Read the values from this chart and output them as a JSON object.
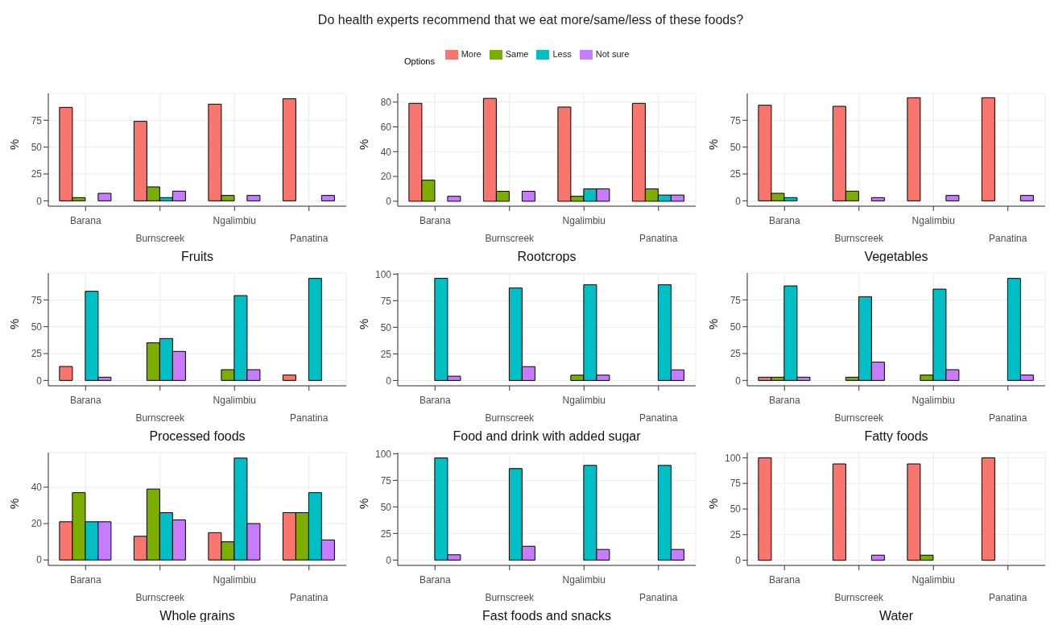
{
  "chart_data": [
    {
      "type": "bar",
      "xlabel": "Fruits",
      "ylabel": "%",
      "grid": true,
      "categories": [
        "Barana",
        "Burnscreek",
        "Ngalimbiu",
        "Panatina"
      ],
      "ylim": [
        -5,
        100
      ],
      "yticks": [
        0,
        25,
        50,
        75
      ],
      "series": [
        {
          "color": "#f8766d",
          "values": [
            87,
            74,
            90,
            95
          ]
        },
        {
          "color": "#7cae00",
          "values": [
            3,
            13,
            5,
            0
          ]
        },
        {
          "color": "#00bfc4",
          "values": [
            0,
            3,
            0,
            0
          ]
        },
        {
          "color": "#c77cff",
          "values": [
            7,
            9,
            5,
            5
          ]
        }
      ]
    },
    {
      "type": "bar",
      "title": "Do health experts recommend that we eat more/same/less of these foods?",
      "legend_title": "Options",
      "legend": "top",
      "xlabel": "Rootcrops",
      "ylabel": "%",
      "grid": true,
      "categories": [
        "Barana",
        "Burnscreek",
        "Ngalimbiu",
        "Panatina"
      ],
      "ylim": [
        -4,
        87
      ],
      "yticks": [
        0,
        20,
        40,
        60,
        80
      ],
      "series": [
        {
          "name": "More",
          "color": "#f8766d",
          "values": [
            79,
            83,
            76,
            79
          ]
        },
        {
          "name": "Same",
          "color": "#7cae00",
          "values": [
            17,
            8,
            4,
            10
          ]
        },
        {
          "name": "Less",
          "color": "#00bfc4",
          "values": [
            0,
            0,
            10,
            5
          ]
        },
        {
          "name": "Not sure",
          "color": "#c77cff",
          "values": [
            4,
            8,
            10,
            5
          ]
        }
      ]
    },
    {
      "type": "bar",
      "xlabel": "Vegetables",
      "ylabel": "%",
      "grid": true,
      "categories": [
        "Barana",
        "Burnscreek",
        "Ngalimbiu",
        "Panatina"
      ],
      "ylim": [
        -5,
        100
      ],
      "yticks": [
        0,
        25,
        50,
        75
      ],
      "series": [
        {
          "color": "#f8766d",
          "values": [
            89,
            88,
            96,
            96
          ]
        },
        {
          "color": "#7cae00",
          "values": [
            7,
            9,
            0,
            0
          ]
        },
        {
          "color": "#00bfc4",
          "values": [
            3,
            0,
            0,
            0
          ]
        },
        {
          "color": "#c77cff",
          "values": [
            0,
            3,
            5,
            5
          ]
        }
      ]
    },
    {
      "type": "bar",
      "xlabel": "Processed foods",
      "ylabel": "%",
      "grid": true,
      "categories": [
        "Barana",
        "Burnscreek",
        "Ngalimbiu",
        "Panatina"
      ],
      "ylim": [
        -5,
        100
      ],
      "yticks": [
        0,
        25,
        50,
        75
      ],
      "series": [
        {
          "color": "#f8766d",
          "values": [
            13,
            0,
            0,
            5
          ]
        },
        {
          "color": "#7cae00",
          "values": [
            0,
            35,
            10,
            0
          ]
        },
        {
          "color": "#00bfc4",
          "values": [
            83,
            39,
            79,
            95
          ]
        },
        {
          "color": "#c77cff",
          "values": [
            3,
            27,
            10,
            0
          ]
        }
      ]
    },
    {
      "type": "bar",
      "xlabel": "Food and drink with added sugar",
      "ylabel": "%",
      "grid": true,
      "categories": [
        "Barana",
        "Burnscreek",
        "Ngalimbiu",
        "Panatina"
      ],
      "ylim": [
        -5,
        101
      ],
      "yticks": [
        0,
        25,
        50,
        75,
        100
      ],
      "series": [
        {
          "color": "#f8766d",
          "values": [
            0,
            0,
            0,
            0
          ]
        },
        {
          "color": "#7cae00",
          "values": [
            0,
            0,
            5,
            0
          ]
        },
        {
          "color": "#00bfc4",
          "values": [
            96,
            87,
            90,
            90
          ]
        },
        {
          "color": "#c77cff",
          "values": [
            4,
            13,
            5,
            10
          ]
        }
      ]
    },
    {
      "type": "bar",
      "xlabel": "Fatty foods",
      "ylabel": "%",
      "grid": true,
      "categories": [
        "Barana",
        "Burnscreek",
        "Ngalimbiu",
        "Panatina"
      ],
      "ylim": [
        -5,
        100
      ],
      "yticks": [
        0,
        25,
        50,
        75
      ],
      "series": [
        {
          "color": "#f8766d",
          "values": [
            3,
            0,
            0,
            0
          ]
        },
        {
          "color": "#7cae00",
          "values": [
            3,
            3,
            5,
            0
          ]
        },
        {
          "color": "#00bfc4",
          "values": [
            88,
            78,
            85,
            95
          ]
        },
        {
          "color": "#c77cff",
          "values": [
            3,
            17,
            10,
            5
          ]
        }
      ]
    },
    {
      "type": "bar",
      "xlabel": "Whole grains",
      "ylabel": "%",
      "grid": true,
      "categories": [
        "Barana",
        "Burnscreek",
        "Ngalimbiu",
        "Panatina"
      ],
      "ylim": [
        -3,
        59
      ],
      "yticks": [
        0,
        20,
        40
      ],
      "series": [
        {
          "color": "#f8766d",
          "values": [
            21,
            13,
            15,
            26
          ]
        },
        {
          "color": "#7cae00",
          "values": [
            37,
            39,
            10,
            26
          ]
        },
        {
          "color": "#00bfc4",
          "values": [
            21,
            26,
            56,
            37
          ]
        },
        {
          "color": "#c77cff",
          "values": [
            21,
            22,
            20,
            11
          ]
        }
      ]
    },
    {
      "type": "bar",
      "xlabel": "Fast foods and snacks",
      "ylabel": "%",
      "grid": true,
      "categories": [
        "Barana",
        "Burnscreek",
        "Ngalimbiu",
        "Panatina"
      ],
      "ylim": [
        -5,
        101
      ],
      "yticks": [
        0,
        25,
        50,
        75,
        100
      ],
      "series": [
        {
          "color": "#f8766d",
          "values": [
            0,
            0,
            0,
            0
          ]
        },
        {
          "color": "#7cae00",
          "values": [
            0,
            0,
            0,
            0
          ]
        },
        {
          "color": "#00bfc4",
          "values": [
            96,
            86,
            89,
            89
          ]
        },
        {
          "color": "#c77cff",
          "values": [
            5,
            13,
            10,
            10
          ]
        }
      ]
    },
    {
      "type": "bar",
      "xlabel": "Water",
      "ylabel": "%",
      "grid": true,
      "categories": [
        "Barana",
        "Burnscreek",
        "Ngalimbiu",
        "Panatina"
      ],
      "ylim": [
        -5,
        105
      ],
      "yticks": [
        0,
        25,
        50,
        75,
        100
      ],
      "series": [
        {
          "color": "#f8766d",
          "values": [
            100,
            94,
            94,
            100
          ]
        },
        {
          "color": "#7cae00",
          "values": [
            0,
            0,
            5,
            0
          ]
        },
        {
          "color": "#00bfc4",
          "values": [
            0,
            0,
            0,
            0
          ]
        },
        {
          "color": "#c77cff",
          "values": [
            0,
            5,
            0,
            0
          ]
        }
      ]
    }
  ]
}
